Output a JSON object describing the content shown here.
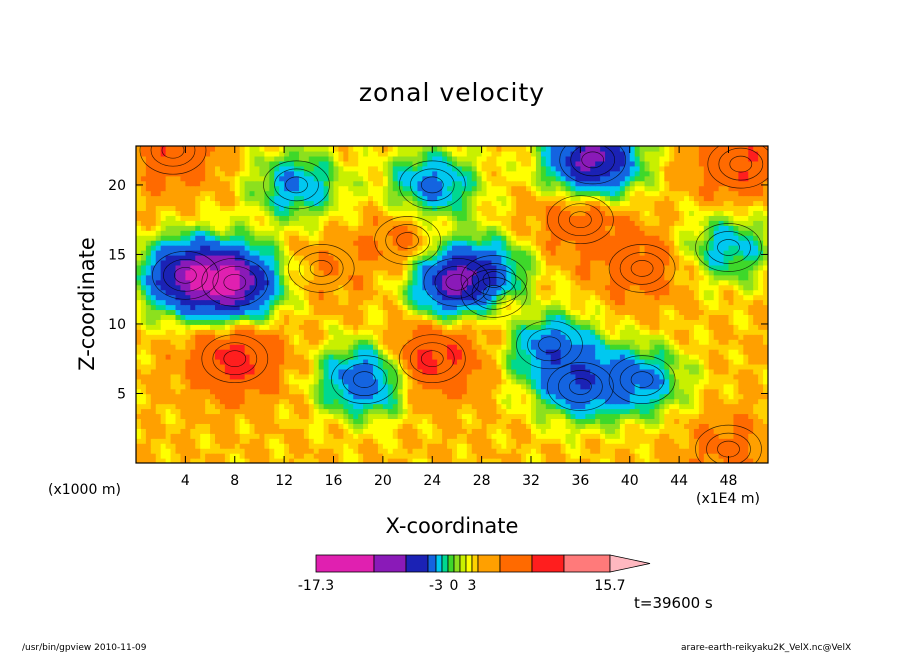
{
  "title": "zonal velocity",
  "chart_data": {
    "type": "heatmap",
    "title": "zonal velocity",
    "xlabel": "X-coordinate",
    "ylabel": "Z-coordinate",
    "x_unit_label": "(x1000 m)",
    "x_scale_label": "(x1E4 m)",
    "x_ticks": [
      "4",
      "8",
      "12",
      "16",
      "20",
      "24",
      "28",
      "32",
      "36",
      "40",
      "44",
      "48"
    ],
    "x_tick_values": [
      4,
      8,
      12,
      16,
      20,
      24,
      28,
      32,
      36,
      40,
      44,
      48
    ],
    "y_ticks": [
      "5",
      "10",
      "15",
      "20"
    ],
    "y_tick_values": [
      5,
      10,
      15,
      20
    ],
    "xlim": [
      0,
      51.2
    ],
    "ylim": [
      0,
      22.8
    ],
    "colorbar": {
      "tick_labels": [
        "-17.3",
        "-3",
        "0",
        "3",
        "15.7"
      ],
      "levels": [
        -17.3,
        -13,
        -9,
        -5,
        -3,
        -2,
        -1,
        0,
        1,
        2,
        3,
        5,
        9,
        13,
        15.7
      ],
      "colors": [
        "#e020b0",
        "#8a1ab8",
        "#1b22b5",
        "#1464e0",
        "#00c8f0",
        "#00d890",
        "#3ed82a",
        "#8ce01e",
        "#c8f000",
        "#ffff00",
        "#ffd200",
        "#ffa000",
        "#ff6a00",
        "#ff1e1e",
        "#ff7a7a",
        "#ffb8c0"
      ]
    },
    "features": {
      "negative_cores": [
        {
          "x": 4,
          "z": 13.5,
          "v": -12
        },
        {
          "x": 8,
          "z": 13,
          "v": -15
        },
        {
          "x": 26,
          "z": 13,
          "v": -14
        },
        {
          "x": 29,
          "z": 13.2,
          "v": -9
        },
        {
          "x": 13,
          "z": 20,
          "v": -5
        },
        {
          "x": 37,
          "z": 21.8,
          "v": -15
        },
        {
          "x": 36,
          "z": 5.5,
          "v": -6
        },
        {
          "x": 41,
          "z": 6,
          "v": -5
        },
        {
          "x": 18.5,
          "z": 6,
          "v": -8
        },
        {
          "x": 24,
          "z": 20,
          "v": -6
        },
        {
          "x": 33.5,
          "z": 8.5,
          "v": -6
        },
        {
          "x": 48,
          "z": 15.5,
          "v": -4
        }
      ],
      "positive_cores": [
        {
          "x": 8,
          "z": 7.5,
          "v": 11
        },
        {
          "x": 24,
          "z": 7.5,
          "v": 11
        },
        {
          "x": 29,
          "z": 12.2,
          "v": 13
        },
        {
          "x": 36,
          "z": 17.5,
          "v": 8
        },
        {
          "x": 41,
          "z": 14,
          "v": 7
        },
        {
          "x": 49,
          "z": 21.5,
          "v": 9
        },
        {
          "x": 22,
          "z": 16,
          "v": 7
        },
        {
          "x": 48,
          "z": 1,
          "v": 6
        },
        {
          "x": 3,
          "z": 22.5,
          "v": 8
        },
        {
          "x": 15,
          "z": 14,
          "v": 5
        }
      ],
      "background": 3,
      "annotation": "t=39600 s"
    }
  },
  "annotation": "t=39600 s",
  "footer": {
    "left": "/usr/bin/gpview   2010-11-09",
    "right": "arare-earth-reikyaku2K_VelX.nc@VelX"
  }
}
